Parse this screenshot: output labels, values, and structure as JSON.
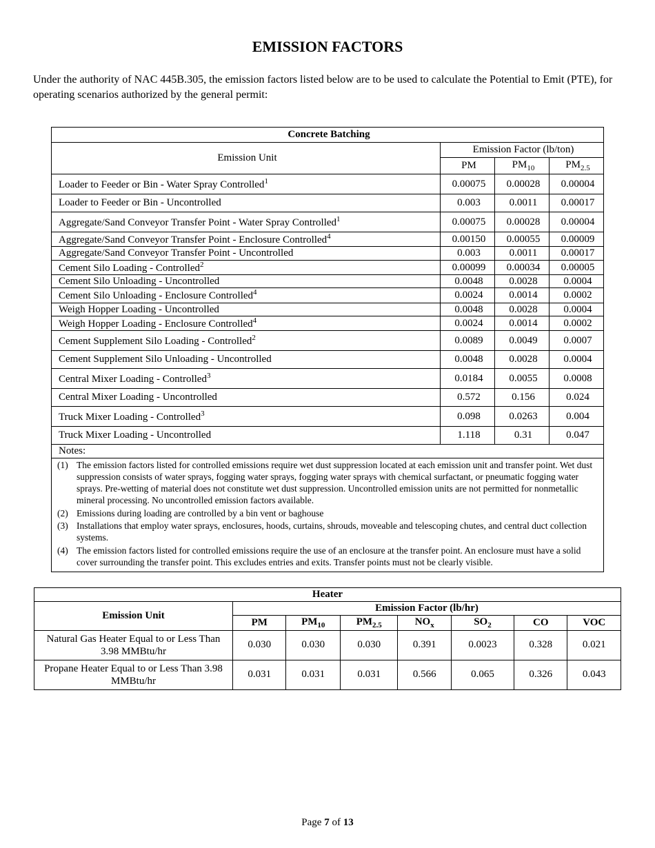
{
  "title": "EMISSION FACTORS",
  "intro": "Under the authority of NAC 445B.305, the emission factors listed below are to be used to calculate the Potential to Emit (PTE), for operating scenarios authorized by the general permit:",
  "concrete": {
    "caption": "Concrete Batching",
    "eu_header": "Emission Unit",
    "ef_header": "Emission Factor (lb/ton)",
    "cols": [
      "PM",
      "PM10",
      "PM2.5"
    ],
    "rows": [
      {
        "label": "Loader to Feeder or Bin - Water Spray Controlled",
        "sup": "1",
        "v": [
          "0.00075",
          "0.00028",
          "0.00004"
        ],
        "spacing": "pad"
      },
      {
        "label": "Loader to Feeder or Bin - Uncontrolled",
        "sup": "",
        "v": [
          "0.003",
          "0.0011",
          "0.00017"
        ],
        "spacing": "pad"
      },
      {
        "label": "Aggregate/Sand Conveyor Transfer Point - Water Spray Controlled",
        "sup": "1",
        "v": [
          "0.00075",
          "0.00028",
          "0.00004"
        ],
        "spacing": "pad"
      },
      {
        "label": "Aggregate/Sand Conveyor Transfer Point - Enclosure Controlled",
        "sup": "4",
        "v": [
          "0.00150",
          "0.00055",
          "0.00009"
        ],
        "spacing": "tight"
      },
      {
        "label": "Aggregate/Sand Conveyor Transfer Point - Uncontrolled",
        "sup": "",
        "v": [
          "0.003",
          "0.0011",
          "0.00017"
        ],
        "spacing": "tight"
      },
      {
        "label": "Cement Silo Loading - Controlled",
        "sup": "2",
        "v": [
          "0.00099",
          "0.00034",
          "0.00005"
        ],
        "spacing": "tight"
      },
      {
        "label": "Cement Silo Unloading - Uncontrolled",
        "sup": "",
        "v": [
          "0.0048",
          "0.0028",
          "0.0004"
        ],
        "spacing": "tight"
      },
      {
        "label": "Cement Silo Unloading - Enclosure Controlled",
        "sup": "4",
        "v": [
          "0.0024",
          "0.0014",
          "0.0002"
        ],
        "spacing": "tight"
      },
      {
        "label": "Weigh Hopper Loading - Uncontrolled",
        "sup": "",
        "v": [
          "0.0048",
          "0.0028",
          "0.0004"
        ],
        "spacing": "tight"
      },
      {
        "label": "Weigh Hopper Loading - Enclosure Controlled",
        "sup": "4",
        "v": [
          "0.0024",
          "0.0014",
          "0.0002"
        ],
        "spacing": "tight"
      },
      {
        "label": "Cement Supplement Silo Loading - Controlled",
        "sup": "2",
        "v": [
          "0.0089",
          "0.0049",
          "0.0007"
        ],
        "spacing": "pad"
      },
      {
        "label": "Cement Supplement Silo Unloading - Uncontrolled",
        "sup": "",
        "v": [
          "0.0048",
          "0.0028",
          "0.0004"
        ],
        "spacing": "pad"
      },
      {
        "label": "Central Mixer Loading - Controlled",
        "sup": "3",
        "v": [
          "0.0184",
          "0.0055",
          "0.0008"
        ],
        "spacing": "pad"
      },
      {
        "label": "Central Mixer Loading - Uncontrolled",
        "sup": "",
        "v": [
          "0.572",
          "0.156",
          "0.024"
        ],
        "spacing": "pad"
      },
      {
        "label": "Truck Mixer Loading - Controlled",
        "sup": "3",
        "v": [
          "0.098",
          "0.0263",
          "0.004"
        ],
        "spacing": "pad"
      },
      {
        "label": "Truck Mixer Loading - Uncontrolled",
        "sup": "",
        "v": [
          "1.118",
          "0.31",
          "0.047"
        ],
        "spacing": "pad"
      }
    ]
  },
  "notes": {
    "label": "Notes:",
    "items": [
      "The emission factors listed for controlled emissions require wet dust suppression located at each emission unit and transfer point.  Wet dust suppression consists of water sprays, fogging water sprays, fogging water sprays with chemical surfactant, or pneumatic fogging water sprays.  Pre-wetting of material does not constitute wet dust suppression.  Uncontrolled emission units are not permitted for nonmetallic mineral processing.  No uncontrolled emission factors available.",
      "Emissions during loading are controlled by a bin vent or baghouse",
      "Installations that employ water sprays, enclosures, hoods, curtains, shrouds, moveable and telescoping chutes, and central duct collection systems.",
      "The emission factors listed for controlled emissions require the use of an enclosure at the transfer point. An enclosure must have a solid cover surrounding the transfer point. This excludes entries and exits. Transfer points must not be clearly visible."
    ]
  },
  "heater": {
    "caption": "Heater",
    "eu_header": "Emission Unit",
    "ef_header": "Emission Factor (lb/hr)",
    "cols": [
      "PM",
      "PM10",
      "PM2.5",
      "NOx",
      "SO2",
      "CO",
      "VOC"
    ],
    "rows": [
      {
        "label": "Natural Gas Heater Equal to or Less Than 3.98 MMBtu/hr",
        "v": [
          "0.030",
          "0.030",
          "0.030",
          "0.391",
          "0.0023",
          "0.328",
          "0.021"
        ]
      },
      {
        "label": "Propane Heater Equal to or Less Than 3.98 MMBtu/hr",
        "v": [
          "0.031",
          "0.031",
          "0.031",
          "0.566",
          "0.065",
          "0.326",
          "0.043"
        ]
      }
    ]
  },
  "footer": {
    "prefix": "Page ",
    "page": "7",
    "of": " of ",
    "total": "13"
  }
}
